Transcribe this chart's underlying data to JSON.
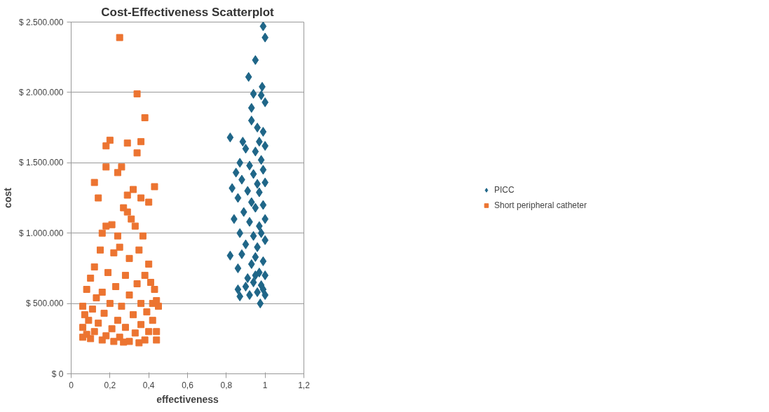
{
  "chart_data": {
    "type": "scatter",
    "title": "Cost-Effectiveness Scatterplot",
    "xlabel": "effectiveness",
    "ylabel": "cost",
    "xlim": [
      0,
      1.2
    ],
    "xticks": [
      0,
      {
        "value": 0.2,
        "label": "0,2"
      },
      {
        "value": 0.4,
        "label": "0,4"
      },
      {
        "value": 0.6,
        "label": "0,6"
      },
      {
        "value": 0.8,
        "label": "0,8"
      },
      1,
      {
        "value": 1.2,
        "label": "1,2"
      }
    ],
    "ylim": [
      0,
      2500000
    ],
    "yticks": [
      {
        "value": 0,
        "label": "$ 0"
      },
      {
        "value": 500000,
        "label": "$ 500.000"
      },
      {
        "value": 1000000,
        "label": "$ 1.000.000"
      },
      {
        "value": 1500000,
        "label": "$ 1.500.000"
      },
      {
        "value": 2000000,
        "label": "$ 2.000.000"
      },
      {
        "value": 2500000,
        "label": "$ 2.500.000"
      }
    ],
    "grid": "y",
    "legend": "right",
    "series": [
      {
        "name": "PICC",
        "color": "#1f6688",
        "marker": "diamond",
        "x": [
          0.99,
          1.0,
          0.95,
          0.915,
          0.985,
          0.94,
          0.98,
          1.0,
          0.93,
          0.82,
          0.885,
          0.93,
          0.96,
          0.99,
          0.97,
          0.9,
          0.95,
          1.0,
          0.87,
          0.92,
          0.98,
          0.85,
          0.94,
          0.99,
          0.88,
          0.96,
          1.0,
          0.83,
          0.91,
          0.97,
          0.86,
          0.93,
          0.99,
          0.95,
          0.89,
          1.0,
          0.84,
          0.92,
          0.97,
          0.98,
          0.87,
          0.94,
          1.0,
          0.9,
          0.96,
          0.82,
          0.88,
          0.95,
          0.99,
          0.93,
          0.86,
          0.97,
          1.0,
          0.91,
          0.94,
          0.98,
          0.86,
          0.9,
          0.975,
          0.96,
          1.0,
          0.92,
          0.87,
          0.99,
          0.95
        ],
        "values": [
          2470000,
          2390000,
          2230000,
          2110000,
          2040000,
          1990000,
          1980000,
          1930000,
          1890000,
          1680000,
          1650000,
          1800000,
          1750000,
          1720000,
          1650000,
          1600000,
          1580000,
          1620000,
          1500000,
          1480000,
          1520000,
          1430000,
          1420000,
          1450000,
          1380000,
          1350000,
          1360000,
          1320000,
          1300000,
          1290000,
          1250000,
          1220000,
          1200000,
          1180000,
          1150000,
          1100000,
          1100000,
          1080000,
          1050000,
          1000000,
          1000000,
          980000,
          950000,
          920000,
          900000,
          840000,
          850000,
          830000,
          800000,
          780000,
          750000,
          720000,
          700000,
          680000,
          650000,
          630000,
          600000,
          620000,
          500000,
          580000,
          560000,
          560000,
          550000,
          600000,
          700000
        ]
      },
      {
        "name": "Short peripheral catheter",
        "color": "#ec7431",
        "marker": "square",
        "x": [
          0.25,
          0.34,
          0.38,
          0.18,
          0.2,
          0.29,
          0.36,
          0.34,
          0.18,
          0.26,
          0.24,
          0.12,
          0.14,
          0.32,
          0.29,
          0.36,
          0.43,
          0.4,
          0.29,
          0.31,
          0.27,
          0.21,
          0.18,
          0.16,
          0.24,
          0.33,
          0.37,
          0.35,
          0.25,
          0.15,
          0.22,
          0.3,
          0.12,
          0.4,
          0.38,
          0.1,
          0.28,
          0.19,
          0.34,
          0.43,
          0.41,
          0.08,
          0.23,
          0.16,
          0.3,
          0.13,
          0.42,
          0.45,
          0.06,
          0.44,
          0.36,
          0.2,
          0.26,
          0.11,
          0.39,
          0.07,
          0.17,
          0.32,
          0.42,
          0.09,
          0.24,
          0.14,
          0.36,
          0.06,
          0.28,
          0.44,
          0.21,
          0.4,
          0.12,
          0.33,
          0.08,
          0.18,
          0.25,
          0.38,
          0.44,
          0.1,
          0.3,
          0.16,
          0.22,
          0.06,
          0.35,
          0.27
        ],
        "values": [
          2390000,
          1990000,
          1820000,
          1620000,
          1660000,
          1640000,
          1650000,
          1570000,
          1470000,
          1470000,
          1430000,
          1360000,
          1250000,
          1310000,
          1270000,
          1250000,
          1330000,
          1220000,
          1150000,
          1100000,
          1180000,
          1060000,
          1050000,
          1000000,
          980000,
          1050000,
          980000,
          880000,
          900000,
          880000,
          860000,
          820000,
          760000,
          780000,
          700000,
          680000,
          700000,
          720000,
          640000,
          600000,
          650000,
          600000,
          620000,
          580000,
          560000,
          540000,
          500000,
          480000,
          480000,
          520000,
          500000,
          500000,
          480000,
          460000,
          440000,
          420000,
          430000,
          420000,
          380000,
          380000,
          380000,
          360000,
          350000,
          330000,
          330000,
          300000,
          320000,
          300000,
          300000,
          290000,
          280000,
          270000,
          260000,
          240000,
          240000,
          250000,
          230000,
          240000,
          230000,
          260000,
          220000,
          225000
        ]
      }
    ]
  }
}
